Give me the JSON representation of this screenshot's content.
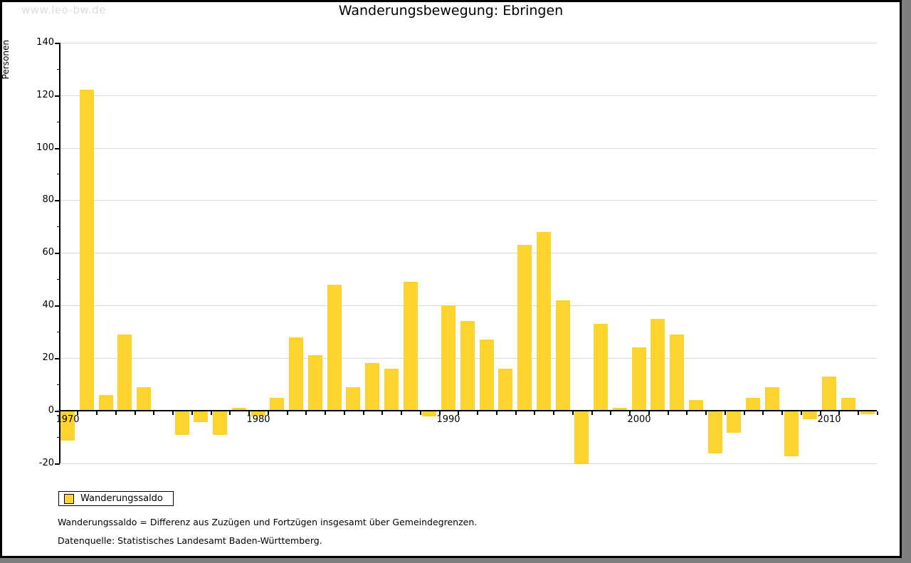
{
  "watermark": "www.leo-bw.de",
  "title": "Wanderungsbewegung: Ebringen",
  "y_axis_title": "Personen",
  "legend": {
    "label": "Wanderungssaldo"
  },
  "footnotes": {
    "definition": "Wanderungssaldo = Differenz aus Zuzügen und Fortzügen insgesamt über Gemeindegrenzen.",
    "source": "Datenquelle: Statistisches Landesamt Baden-Württemberg."
  },
  "colors": {
    "bar": "#fdd32d",
    "grid": "#d9d9d9",
    "axis": "#000000",
    "watermark": "#dcdcdc",
    "frame_shadow": "#7f7f7f"
  },
  "chart_data": {
    "type": "bar",
    "title": "Wanderungsbewegung: Ebringen",
    "xlabel": "",
    "ylabel": "Personen",
    "series_name": "Wanderungssaldo",
    "x": [
      1970,
      1971,
      1972,
      1973,
      1974,
      1975,
      1976,
      1977,
      1978,
      1979,
      1980,
      1981,
      1982,
      1983,
      1984,
      1985,
      1986,
      1987,
      1988,
      1989,
      1990,
      1991,
      1992,
      1993,
      1994,
      1995,
      1996,
      1997,
      1998,
      1999,
      2000,
      2001,
      2002,
      2003,
      2004,
      2005,
      2006,
      2007,
      2008,
      2009,
      2010,
      2011,
      2012
    ],
    "values": [
      -11,
      122,
      6,
      29,
      9,
      0,
      -9,
      -4,
      -9,
      1,
      -2,
      5,
      28,
      21,
      48,
      9,
      18,
      16,
      49,
      -2,
      40,
      34,
      27,
      16,
      63,
      68,
      42,
      -20,
      33,
      1,
      24,
      35,
      29,
      4,
      -16,
      -8,
      5,
      9,
      -17,
      -3,
      13,
      5,
      -1
    ],
    "ylim": [
      -20,
      140
    ],
    "y_ticks": [
      140,
      120,
      100,
      80,
      60,
      40,
      20,
      0,
      -20
    ],
    "y_minor_step": 10,
    "x_labeled_ticks": [
      1970,
      1980,
      1990,
      2000,
      2010
    ],
    "grid": true,
    "legend_position": "bottom-left"
  }
}
